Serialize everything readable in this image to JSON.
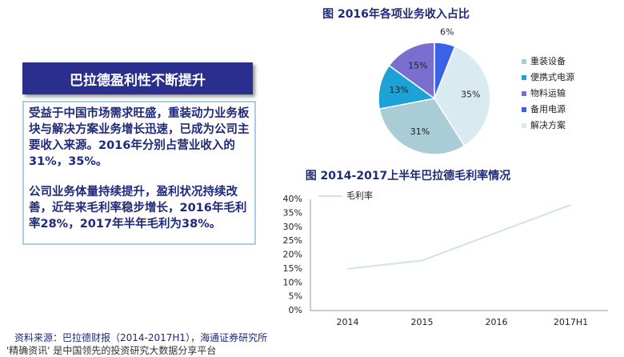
{
  "banner": "巴拉德盈利性不断提升",
  "body": {
    "paragraphs": [
      "受益于中国市场需求旺盛，重装动力业务板块与解决方案业务增长迅速，已成为公司主要收入来源。2016年分别占营业收入的31%，35%。",
      "公司业务体量持续提升，盈利状况持续改善，近年来毛利率稳步增长，2016年毛利率28%，2017年半年毛利为38%。"
    ]
  },
  "source": "资料来源：巴拉德财报（2014-2017H1），海通证券研究所",
  "footer": "'精确资讯' 是中国领先的投资研究大数据分享平台",
  "chart_data": [
    {
      "type": "pie",
      "title": "图 2016年各项业务收入占比",
      "categories": [
        "重装设备",
        "便携式电源",
        "物料运输",
        "备用电源",
        "解决方案"
      ],
      "values": [
        31,
        13,
        15,
        6,
        35
      ],
      "value_labels": [
        "31%",
        "13%",
        "15%",
        "6%",
        "35%"
      ],
      "colors": [
        "#a9ccd6",
        "#1da2d8",
        "#7a6fcf",
        "#3a62e6",
        "#d9ebf0"
      ],
      "legend": "right"
    },
    {
      "type": "line",
      "title": "图 2014-2017上半年巴拉德毛利率情况",
      "categories": [
        "2014",
        "2015",
        "2016",
        "2017H1"
      ],
      "series": [
        {
          "name": "毛利率",
          "color": "#d3e3e0",
          "values": [
            15,
            18,
            28,
            38
          ]
        }
      ],
      "ylim": [
        0,
        40
      ],
      "yticks": [
        {
          "value": 0,
          "label": "0%"
        },
        {
          "value": 5,
          "label": "5%"
        },
        {
          "value": 10,
          "label": "10%"
        },
        {
          "value": 15,
          "label": "15%"
        },
        {
          "value": 20,
          "label": "20%"
        },
        {
          "value": 25,
          "label": "25%"
        },
        {
          "value": 30,
          "label": "30%"
        },
        {
          "value": 35,
          "label": "35%"
        },
        {
          "value": 40,
          "label": "40%"
        }
      ],
      "legend": "top-left"
    }
  ]
}
